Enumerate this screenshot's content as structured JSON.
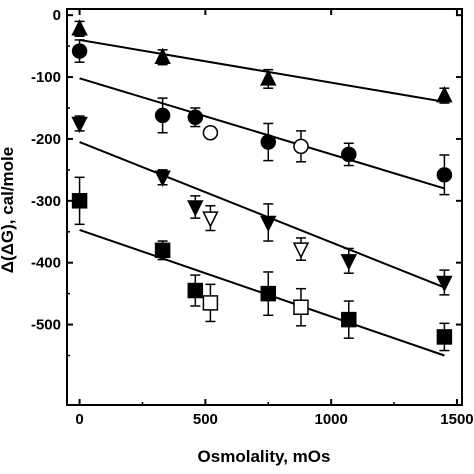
{
  "chart_data": {
    "type": "scatter",
    "title": "",
    "xlabel": "Osmolality, mOs",
    "ylabel": "Δ(ΔG), cal/mole",
    "xlim": [
      -50,
      1520
    ],
    "ylim": [
      -630,
      10
    ],
    "xticks": [
      0,
      500,
      1000,
      1500
    ],
    "xtick_labels": [
      "0",
      "500",
      "1000",
      "1500"
    ],
    "yticks": [
      0,
      -100,
      -200,
      -300,
      -400,
      -500
    ],
    "ytick_labels": [
      "0",
      "-100",
      "-200",
      "-300",
      "-400",
      "-500"
    ],
    "grid": false,
    "legend": "none",
    "series": [
      {
        "marker": "triangle-up",
        "filled": true,
        "x": [
          0,
          330,
          750,
          1450
        ],
        "y": [
          -22,
          -68,
          -103,
          -130
        ],
        "err": [
          12,
          12,
          15,
          12
        ],
        "fit": {
          "x": [
            0,
            1450
          ],
          "y": [
            -40,
            -140
          ]
        }
      },
      {
        "marker": "circle",
        "filled": true,
        "x": [
          0,
          330,
          460,
          750,
          1070,
          1450
        ],
        "y": [
          -58,
          -162,
          -165,
          -205,
          -225,
          -258
        ],
        "err": [
          18,
          28,
          15,
          30,
          18,
          32
        ],
        "fit": {
          "x": [
            0,
            1450
          ],
          "y": [
            -102,
            -280
          ]
        }
      },
      {
        "marker": "circle",
        "filled": false,
        "x": [
          520,
          880
        ],
        "y": [
          -190,
          -212
        ],
        "err": [
          0,
          25
        ],
        "fit": null
      },
      {
        "marker": "triangle-down",
        "filled": true,
        "x": [
          0,
          330,
          460,
          750,
          1070,
          1450
        ],
        "y": [
          -175,
          -262,
          -310,
          -335,
          -397,
          -432
        ],
        "err": [
          12,
          12,
          18,
          30,
          20,
          20
        ],
        "fit": {
          "x": [
            0,
            1450
          ],
          "y": [
            -205,
            -440
          ]
        }
      },
      {
        "marker": "triangle-down",
        "filled": false,
        "x": [
          520,
          880
        ],
        "y": [
          -328,
          -378
        ],
        "err": [
          20,
          18
        ],
        "fit": null
      },
      {
        "marker": "square",
        "filled": true,
        "x": [
          0,
          330,
          460,
          750,
          1070,
          1450
        ],
        "y": [
          -300,
          -380,
          -445,
          -450,
          -492,
          -520
        ],
        "err": [
          38,
          15,
          25,
          35,
          30,
          22
        ],
        "fit": {
          "x": [
            0,
            1450
          ],
          "y": [
            -347,
            -550
          ]
        }
      },
      {
        "marker": "square",
        "filled": false,
        "x": [
          520,
          880
        ],
        "y": [
          -465,
          -472
        ],
        "err": [
          30,
          30
        ],
        "fit": null
      }
    ]
  }
}
